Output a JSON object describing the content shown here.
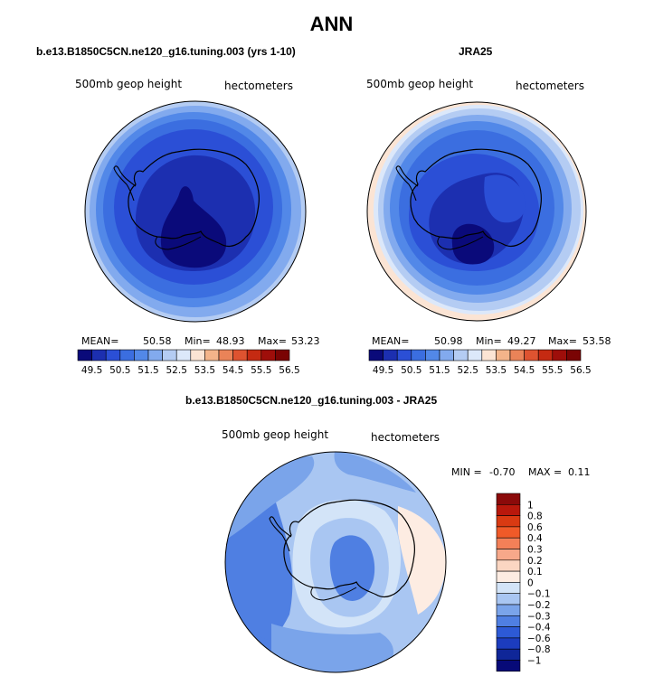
{
  "title": "ANN",
  "chart_data": [
    {
      "type": "heatmap",
      "projection": "south polar stereographic",
      "title": "b.e13.B1850C5CN.ne120_g16.tuning.003 (yrs 1-10)",
      "left_label": "500mb geop height",
      "right_label": "hectometers",
      "stats": {
        "mean_label": "MEAN=",
        "mean": "50.58",
        "min_label": "Min=",
        "min": "48.93",
        "max_label": "Max=",
        "max": "53.23"
      },
      "levels": [
        "49.5",
        "50.5",
        "51.5",
        "52.5",
        "53.5",
        "54.5",
        "55.5",
        "56.5"
      ]
    },
    {
      "type": "heatmap",
      "projection": "south polar stereographic",
      "title": "JRA25",
      "left_label": "500mb geop height",
      "right_label": "hectometers",
      "stats": {
        "mean_label": "MEAN=",
        "mean": "50.98",
        "min_label": "Min=",
        "min": "49.27",
        "max_label": "Max=",
        "max": "53.58"
      },
      "levels": [
        "49.5",
        "50.5",
        "51.5",
        "52.5",
        "53.5",
        "54.5",
        "55.5",
        "56.5"
      ]
    },
    {
      "type": "heatmap",
      "projection": "south polar stereographic",
      "title": "b.e13.B1850C5CN.ne120_g16.tuning.003 - JRA25",
      "left_label": "500mb geop height",
      "right_label": "hectometers",
      "stats": {
        "min_label": "MIN =",
        "min": "-0.70",
        "max_label": "MAX =",
        "max": "0.11"
      },
      "levels": [
        "1",
        "0.8",
        "0.6",
        "0.4",
        "0.3",
        "0.2",
        "0.1",
        "0",
        "−0.1",
        "−0.2",
        "−0.3",
        "−0.4",
        "−0.6",
        "−0.8",
        "−1"
      ]
    }
  ],
  "colors": {
    "abs_scale": [
      "#0a0a7a",
      "#1c2fb0",
      "#2b4fd6",
      "#3b6ee0",
      "#5288e8",
      "#82aaee",
      "#b4ccf3",
      "#dce8fa",
      "#fbe4d4",
      "#f3b48a",
      "#ea8358",
      "#de5330",
      "#c52a12",
      "#9e0e0a",
      "#7a0404"
    ],
    "diff_scale": [
      "#8b0a0a",
      "#b8180c",
      "#d93a12",
      "#f05a28",
      "#f38058",
      "#f7a88a",
      "#fbd6c2",
      "#fdece2",
      "#d3e4f8",
      "#a9c6f2",
      "#7aa4ea",
      "#4f7fe2",
      "#2d5ad6",
      "#1c3cbe",
      "#0f2698",
      "#070a78"
    ]
  }
}
